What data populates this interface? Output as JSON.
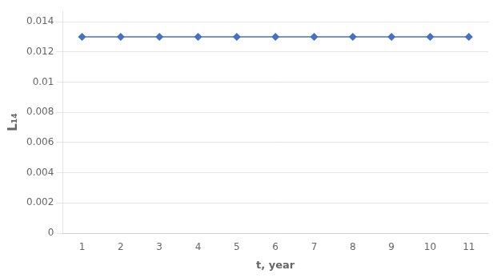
{
  "chart_data": {
    "type": "line",
    "x": [
      1,
      2,
      3,
      4,
      5,
      6,
      7,
      8,
      9,
      10,
      11
    ],
    "values": [
      0.013,
      0.013,
      0.013,
      0.013,
      0.013,
      0.013,
      0.013,
      0.013,
      0.013,
      0.013,
      0.013
    ],
    "color": "#4472c4",
    "marker": "diamond",
    "line_style": "solid",
    "xlabel": "t, year",
    "ylabel": "L₁₄",
    "xlim": [
      0.5,
      11.5
    ],
    "xticks": [
      1,
      2,
      3,
      4,
      5,
      6,
      7,
      8,
      9,
      10,
      11
    ],
    "ylim": [
      0,
      0.0147
    ],
    "yticks": [
      0,
      0.002,
      0.004,
      0.006,
      0.008,
      0.01,
      0.012,
      0.014
    ],
    "grid": "y"
  }
}
